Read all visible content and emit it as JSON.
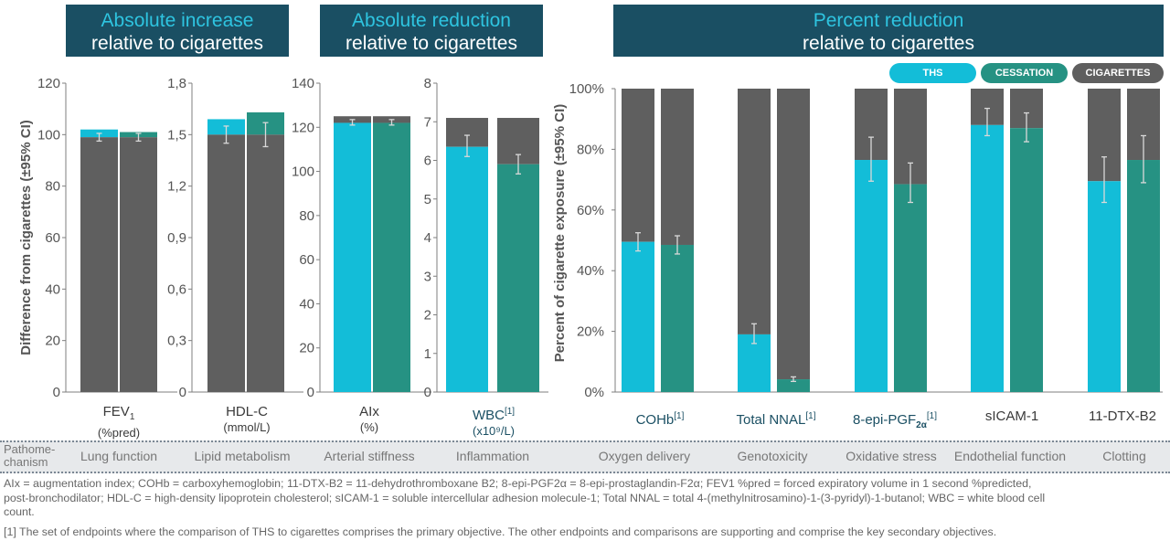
{
  "headers": {
    "abs_increase": {
      "line1": "Absolute increase",
      "line2": "relative to cigarettes"
    },
    "abs_reduction": {
      "line1": "Absolute reduction",
      "line2": "relative to cigarettes"
    },
    "pct_reduction": {
      "line1": "Percent reduction",
      "line2": "relative to cigarettes"
    }
  },
  "legend": [
    {
      "label": "THS",
      "color": "#13bdd8"
    },
    {
      "label": "CESSATION",
      "color": "#269283"
    },
    {
      "label": "CIGARETTES",
      "color": "#5f5f5f"
    }
  ],
  "colors": {
    "ths": "#13bdd8",
    "cessation": "#269283",
    "cigarettes": "#5f5f5f",
    "header_bg": "#1a4f63"
  },
  "categories": {
    "fev1": {
      "name": "FEV",
      "sub": "1",
      "unit": "(%pred)"
    },
    "hdl": {
      "name": "HDL-C",
      "unit": "(mmol/L)"
    },
    "aix": {
      "name": "AIx",
      "unit": "(%)"
    },
    "wbc": {
      "name": "WBC",
      "sup": "[1]",
      "unit": "(x10⁹/L)"
    },
    "cohb": {
      "name": "COHb",
      "sup": "[1]"
    },
    "nnal": {
      "name": "Total NNAL",
      "sup": "[1]"
    },
    "epi": {
      "name": "8-epi-PGF",
      "sub": "2α",
      "sup": "[1]"
    },
    "sicam": {
      "name": "sICAM-1"
    },
    "dtx": {
      "name": "11-DTX-B2"
    }
  },
  "mechanisms": {
    "header": "Pathome-chanism",
    "items": [
      "Lung function",
      "Lipid metabolism",
      "Arterial stiffness",
      "Inflammation",
      "Oxygen delivery",
      "Genotoxicity",
      "Oxidative stress",
      "Endothelial function",
      "Clotting"
    ]
  },
  "footnotes": {
    "line1": "AIx = augmentation index; COHb = carboxyhemoglobin; 11-DTX-B2 = 11-dehydrothromboxane B2; 8-epi-PGF2α = 8-epi-prostaglandin-F2α; FEV1 %pred = forced expiratory volume in 1 second %predicted,",
    "line2": "post-bronchodilator; HDL-C = high-density lipoprotein cholesterol; sICAM-1 = soluble intercellular adhesion molecule-1; Total NNAL = total 4-(methylnitrosamino)-1-(3-pyridyl)-1-butanol; WBC = white blood cell",
    "line3": "count.",
    "line4": "[1] The set of endpoints where the comparison of THS to cigarettes comprises the primary objective. The other endpoints and comparisons are supporting and comprise the key secondary objectives."
  },
  "chart_data": [
    {
      "type": "bar",
      "id": "fev1",
      "ylabel": "Difference from cigarettes (±95% CI)",
      "ylim": [
        0,
        120
      ],
      "yticks": [
        "0",
        "20",
        "40",
        "60",
        "80",
        "100",
        "120"
      ],
      "series": [
        {
          "name": "THS",
          "base": 99,
          "top": 102,
          "ci": [
            97.5,
            100.5
          ]
        },
        {
          "name": "CESSATION",
          "base": 99,
          "top": 101,
          "ci": [
            97.5,
            100.5
          ]
        }
      ]
    },
    {
      "type": "bar",
      "id": "hdl",
      "ylim": [
        0,
        1.8
      ],
      "yticks": [
        "0",
        "0,3",
        "0,6",
        "0,9",
        "1,2",
        "1,5",
        "1,8"
      ],
      "series": [
        {
          "name": "THS",
          "base": 1.5,
          "top": 1.59,
          "ci": [
            1.45,
            1.55
          ]
        },
        {
          "name": "CESSATION",
          "base": 1.5,
          "top": 1.63,
          "ci": [
            1.43,
            1.57
          ]
        }
      ]
    },
    {
      "type": "bar",
      "id": "aix",
      "ylim": [
        0,
        140
      ],
      "yticks": [
        "0",
        "20",
        "40",
        "60",
        "80",
        "100",
        "120",
        "140"
      ],
      "series": [
        {
          "name": "THS",
          "fill": 122,
          "total": 125,
          "ci": [
            121,
            123.5
          ]
        },
        {
          "name": "CESSATION",
          "fill": 122,
          "total": 125,
          "ci": [
            121,
            123.5
          ]
        }
      ]
    },
    {
      "type": "bar",
      "id": "wbc",
      "ylim": [
        0,
        8
      ],
      "yticks": [
        "0",
        "1",
        "2",
        "3",
        "4",
        "5",
        "6",
        "7",
        "8"
      ],
      "series": [
        {
          "name": "THS",
          "fill": 6.35,
          "total": 7.1,
          "ci": [
            6.1,
            6.65
          ]
        },
        {
          "name": "CESSATION",
          "fill": 5.9,
          "total": 7.1,
          "ci": [
            5.65,
            6.15
          ]
        }
      ]
    },
    {
      "type": "bar",
      "id": "pct",
      "ylabel": "Percent of cigarette exposure (±95% CI)",
      "ylim": [
        0,
        100
      ],
      "yticks": [
        "0%",
        "20%",
        "40%",
        "60%",
        "80%",
        "100%"
      ],
      "categories": [
        "COHb",
        "Total NNAL",
        "8-epi-PGF2α",
        "sICAM-1",
        "11-DTX-B2"
      ],
      "series": [
        {
          "name": "THS",
          "values": [
            49.5,
            19,
            76.5,
            88,
            69.5
          ],
          "ci_low": [
            46.5,
            16,
            69.5,
            84.5,
            62.5
          ],
          "ci_high": [
            52.5,
            22.5,
            84,
            93.5,
            77.5
          ]
        },
        {
          "name": "CESSATION",
          "values": [
            48.5,
            4.2,
            68.5,
            87,
            76.5
          ],
          "ci_low": [
            45.5,
            3.5,
            62.5,
            82.5,
            69
          ],
          "ci_high": [
            51.5,
            5,
            75.5,
            92,
            84.5
          ]
        }
      ],
      "cigarettes_reference": 100
    }
  ]
}
